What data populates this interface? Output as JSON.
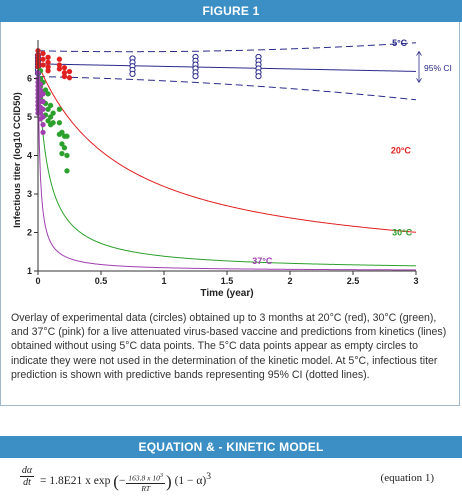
{
  "figure": {
    "banner": "FIGURE 1",
    "caption": "Overlay of experimental data (circles) obtained up to 3 months at 20°C (red), 30°C (green), and 37°C (pink) for a live attenuated virus-based vaccine and predictions from kinetics (lines) obtained without using 5°C data points. The 5°C data points appear as empty circles to indicate they were not used in the determination of the kinetic model. At 5°C, infectious titer prediction is shown with predictive bands representing 95% CI (dotted lines)."
  },
  "equation": {
    "banner": "EQUATION & - KINETIC MODEL",
    "lhs_num": "dα",
    "lhs_den": "dt",
    "rhs_prefix": "= 1.8E21 x exp",
    "minus": "−",
    "exp_num": "163.8 x 10",
    "exp_num_sup": "3",
    "exp_den": "RT",
    "rhs_suffix": "(1 − α)",
    "rhs_suffix_sup": "3",
    "label": "(equation 1)"
  },
  "chart_data": {
    "type": "scatter",
    "xlabel": "Time (year)",
    "ylabel": "Infectious titer (log10 CCID50)",
    "xlim": [
      0,
      3
    ],
    "ylim": [
      1,
      7
    ],
    "xticks": [
      "0",
      "0.5",
      "1",
      "1.5",
      "2",
      "2.5",
      "3"
    ],
    "yticks": [
      "1",
      "2",
      "3",
      "4",
      "5",
      "6"
    ],
    "grid": false,
    "annotations": [
      {
        "text": "5°C",
        "x": 2.87,
        "y": 6.85,
        "color": "#2b2b8c"
      },
      {
        "text": "95% CI",
        "x": 3.1,
        "y": 6.2,
        "color": "#2b2b8c"
      },
      {
        "text": "20°C",
        "x": 2.88,
        "y": 4.05,
        "color": "#e02020"
      },
      {
        "text": "30°C",
        "x": 2.89,
        "y": 1.92,
        "color": "#2ca02c"
      },
      {
        "text": "37°C",
        "x": 1.78,
        "y": 1.18,
        "color": "#a040b0"
      }
    ],
    "series": [
      {
        "key": "5C",
        "label": "5°C",
        "color": "#2b2b8c",
        "marker": "open-circle",
        "fit": {
          "y0": 6.38,
          "k": 0.0655,
          "order": 1
        },
        "ci": {
          "upper0": 6.72,
          "lower0": 6.05,
          "widen": 0.045
        },
        "points": [
          [
            0.0,
            6.6
          ],
          [
            0.0,
            6.52
          ],
          [
            0.0,
            6.45
          ],
          [
            0.0,
            6.38
          ],
          [
            0.0,
            6.3
          ],
          [
            0.0,
            6.22
          ],
          [
            0.0,
            6.14
          ],
          [
            0.75,
            6.52
          ],
          [
            0.75,
            6.42
          ],
          [
            0.75,
            6.32
          ],
          [
            0.75,
            6.22
          ],
          [
            0.75,
            6.12
          ],
          [
            1.25,
            6.56
          ],
          [
            1.25,
            6.46
          ],
          [
            1.25,
            6.36
          ],
          [
            1.25,
            6.26
          ],
          [
            1.25,
            6.16
          ],
          [
            1.25,
            6.06
          ],
          [
            1.75,
            6.56
          ],
          [
            1.75,
            6.46
          ],
          [
            1.75,
            6.36
          ],
          [
            1.75,
            6.26
          ],
          [
            1.75,
            6.16
          ],
          [
            1.75,
            6.06
          ]
        ]
      },
      {
        "key": "20C",
        "label": "20°C",
        "color": "#e02020",
        "marker": "filled-circle",
        "fit": {
          "y0": 6.38,
          "k": 1.45,
          "order": 2
        },
        "points": [
          [
            0.0,
            6.72
          ],
          [
            0.0,
            6.6
          ],
          [
            0.0,
            6.5
          ],
          [
            0.0,
            6.4
          ],
          [
            0.0,
            6.3
          ],
          [
            0.04,
            6.65
          ],
          [
            0.04,
            6.5
          ],
          [
            0.04,
            6.35
          ],
          [
            0.08,
            6.55
          ],
          [
            0.08,
            6.42
          ],
          [
            0.08,
            6.3
          ],
          [
            0.08,
            6.2
          ],
          [
            0.17,
            6.5
          ],
          [
            0.17,
            6.35
          ],
          [
            0.17,
            6.25
          ],
          [
            0.21,
            6.28
          ],
          [
            0.21,
            6.15
          ],
          [
            0.21,
            6.05
          ],
          [
            0.25,
            6.18
          ],
          [
            0.25,
            6.02
          ]
        ]
      },
      {
        "key": "30C",
        "label": "30°C",
        "color": "#2ca02c",
        "marker": "filled-circle",
        "fit": {
          "y0": 6.38,
          "k": 13.0,
          "order": 2
        },
        "points": [
          [
            0.02,
            6.2
          ],
          [
            0.02,
            6.0
          ],
          [
            0.02,
            5.8
          ],
          [
            0.02,
            5.5
          ],
          [
            0.04,
            5.9
          ],
          [
            0.04,
            5.65
          ],
          [
            0.04,
            5.4
          ],
          [
            0.06,
            5.7
          ],
          [
            0.06,
            5.35
          ],
          [
            0.06,
            5.05
          ],
          [
            0.08,
            5.6
          ],
          [
            0.08,
            5.2
          ],
          [
            0.08,
            4.9
          ],
          [
            0.1,
            5.3
          ],
          [
            0.1,
            5.0
          ],
          [
            0.1,
            4.8
          ],
          [
            0.12,
            5.1
          ],
          [
            0.12,
            4.85
          ],
          [
            0.17,
            5.2
          ],
          [
            0.17,
            4.85
          ],
          [
            0.17,
            4.55
          ],
          [
            0.19,
            4.6
          ],
          [
            0.19,
            4.3
          ],
          [
            0.19,
            4.05
          ],
          [
            0.21,
            4.5
          ],
          [
            0.21,
            4.2
          ],
          [
            0.23,
            4.5
          ],
          [
            0.23,
            4.0
          ],
          [
            0.23,
            3.6
          ]
        ]
      },
      {
        "key": "37C",
        "label": "37°C",
        "color": "#a040b0",
        "marker": "filled-circle",
        "fit": {
          "y0": 6.38,
          "k": 62.0,
          "order": 2
        },
        "points": [
          [
            0.0,
            6.15
          ],
          [
            0.0,
            6.0
          ],
          [
            0.0,
            5.9
          ],
          [
            0.0,
            5.8
          ],
          [
            0.0,
            5.7
          ],
          [
            0.0,
            5.6
          ],
          [
            0.0,
            5.5
          ],
          [
            0.0,
            5.4
          ],
          [
            0.0,
            5.3
          ],
          [
            0.0,
            5.2
          ],
          [
            0.0,
            5.1
          ],
          [
            0.02,
            5.85
          ],
          [
            0.02,
            5.7
          ],
          [
            0.02,
            5.55
          ],
          [
            0.02,
            5.4
          ],
          [
            0.02,
            5.25
          ],
          [
            0.02,
            5.1
          ],
          [
            0.02,
            4.95
          ],
          [
            0.04,
            5.6
          ],
          [
            0.04,
            5.4
          ],
          [
            0.04,
            5.2
          ],
          [
            0.04,
            5.0
          ],
          [
            0.04,
            4.8
          ],
          [
            0.04,
            4.6
          ]
        ]
      }
    ]
  }
}
